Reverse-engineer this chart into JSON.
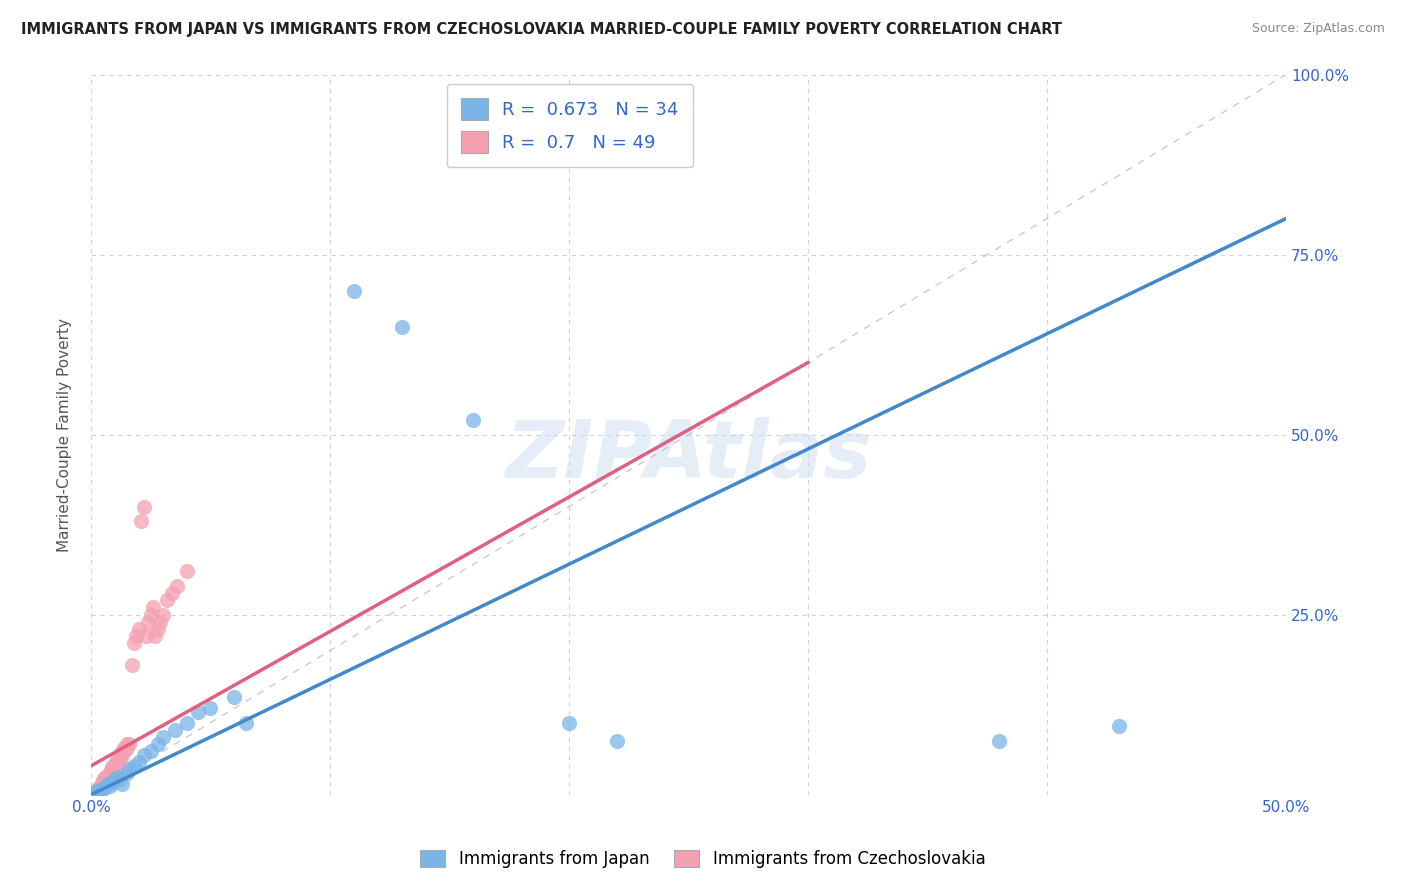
{
  "title": "IMMIGRANTS FROM JAPAN VS IMMIGRANTS FROM CZECHOSLOVAKIA MARRIED-COUPLE FAMILY POVERTY CORRELATION CHART",
  "source": "Source: ZipAtlas.com",
  "ylabel": "Married-Couple Family Poverty",
  "xlim": [
    0.0,
    0.5
  ],
  "ylim": [
    0.0,
    1.0
  ],
  "xticks": [
    0.0,
    0.1,
    0.2,
    0.3,
    0.4,
    0.5
  ],
  "yticks": [
    0.0,
    0.25,
    0.5,
    0.75,
    1.0
  ],
  "xticklabels": [
    "0.0%",
    "",
    "",
    "",
    "",
    "50.0%"
  ],
  "yticklabels_right": [
    "",
    "25.0%",
    "50.0%",
    "75.0%",
    "100.0%"
  ],
  "japan_color": "#7ab4e8",
  "czech_color": "#f4a0b0",
  "japan_line_color": "#4488cc",
  "czech_line_color": "#e06080",
  "japan_R": 0.673,
  "japan_N": 34,
  "czech_R": 0.7,
  "czech_N": 49,
  "watermark": "ZIPAtlas",
  "background_color": "#ffffff",
  "grid_color": "#c8d0dc",
  "japan_points": [
    [
      0.001,
      0.002
    ],
    [
      0.002,
      0.004
    ],
    [
      0.003,
      0.006
    ],
    [
      0.004,
      0.005
    ],
    [
      0.005,
      0.008
    ],
    [
      0.006,
      0.01
    ],
    [
      0.007,
      0.015
    ],
    [
      0.008,
      0.012
    ],
    [
      0.009,
      0.018
    ],
    [
      0.01,
      0.02
    ],
    [
      0.011,
      0.025
    ],
    [
      0.012,
      0.022
    ],
    [
      0.013,
      0.015
    ],
    [
      0.015,
      0.03
    ],
    [
      0.016,
      0.035
    ],
    [
      0.018,
      0.04
    ],
    [
      0.02,
      0.045
    ],
    [
      0.022,
      0.055
    ],
    [
      0.025,
      0.06
    ],
    [
      0.028,
      0.07
    ],
    [
      0.03,
      0.08
    ],
    [
      0.035,
      0.09
    ],
    [
      0.04,
      0.1
    ],
    [
      0.045,
      0.115
    ],
    [
      0.05,
      0.12
    ],
    [
      0.06,
      0.135
    ],
    [
      0.065,
      0.1
    ],
    [
      0.11,
      0.7
    ],
    [
      0.13,
      0.65
    ],
    [
      0.16,
      0.52
    ],
    [
      0.2,
      0.1
    ],
    [
      0.22,
      0.075
    ],
    [
      0.38,
      0.075
    ],
    [
      0.43,
      0.095
    ]
  ],
  "czech_points": [
    [
      0.001,
      0.002
    ],
    [
      0.002,
      0.003
    ],
    [
      0.002,
      0.004
    ],
    [
      0.003,
      0.006
    ],
    [
      0.003,
      0.008
    ],
    [
      0.004,
      0.01
    ],
    [
      0.004,
      0.012
    ],
    [
      0.005,
      0.015
    ],
    [
      0.005,
      0.018
    ],
    [
      0.005,
      0.02
    ],
    [
      0.006,
      0.022
    ],
    [
      0.006,
      0.025
    ],
    [
      0.007,
      0.018
    ],
    [
      0.007,
      0.022
    ],
    [
      0.008,
      0.03
    ],
    [
      0.008,
      0.032
    ],
    [
      0.009,
      0.035
    ],
    [
      0.009,
      0.038
    ],
    [
      0.01,
      0.04
    ],
    [
      0.01,
      0.042
    ],
    [
      0.011,
      0.045
    ],
    [
      0.011,
      0.05
    ],
    [
      0.012,
      0.05
    ],
    [
      0.012,
      0.055
    ],
    [
      0.013,
      0.055
    ],
    [
      0.013,
      0.06
    ],
    [
      0.014,
      0.06
    ],
    [
      0.014,
      0.065
    ],
    [
      0.015,
      0.065
    ],
    [
      0.015,
      0.07
    ],
    [
      0.016,
      0.07
    ],
    [
      0.017,
      0.18
    ],
    [
      0.018,
      0.21
    ],
    [
      0.019,
      0.22
    ],
    [
      0.02,
      0.23
    ],
    [
      0.021,
      0.38
    ],
    [
      0.022,
      0.4
    ],
    [
      0.023,
      0.22
    ],
    [
      0.024,
      0.24
    ],
    [
      0.025,
      0.25
    ],
    [
      0.026,
      0.26
    ],
    [
      0.027,
      0.22
    ],
    [
      0.028,
      0.23
    ],
    [
      0.029,
      0.24
    ],
    [
      0.03,
      0.25
    ],
    [
      0.032,
      0.27
    ],
    [
      0.034,
      0.28
    ],
    [
      0.036,
      0.29
    ],
    [
      0.04,
      0.31
    ]
  ],
  "japan_line_x": [
    0.0,
    0.5
  ],
  "japan_line_y": [
    0.0,
    0.8
  ],
  "czech_line_x": [
    0.0,
    0.3
  ],
  "czech_line_y": [
    0.04,
    0.6
  ],
  "ref_line_x": [
    0.0,
    0.5
  ],
  "ref_line_y": [
    0.0,
    1.0
  ]
}
